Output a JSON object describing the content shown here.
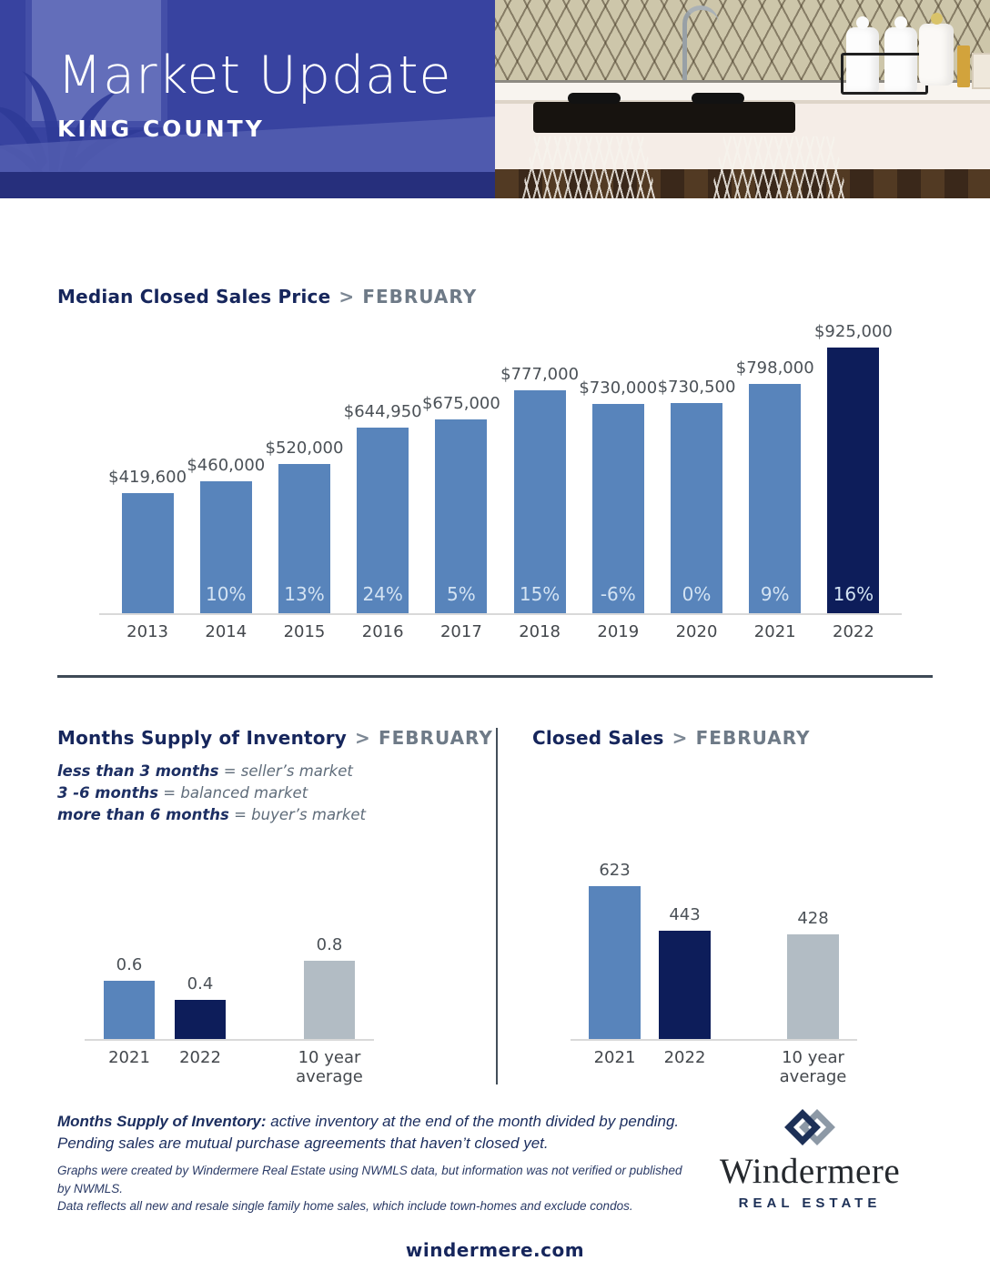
{
  "header": {
    "title": "Market Update",
    "subtitle": "KING COUNTY"
  },
  "ui": {
    "chevron": ">"
  },
  "colors": {
    "steel": "#5884bb",
    "navy": "#0d1d5a",
    "gray": "#b2bcc4",
    "title_navy": "#16265c",
    "period_gray": "#6e7a87",
    "divider": "#3e4a56",
    "pct_text": "#d3e3f3",
    "label_gray": "#4b5157",
    "header_overlay_blue": "#3f4ca6"
  },
  "chart_data": [
    {
      "type": "bar",
      "title": "Median Closed Sales Price",
      "period": "FEBRUARY",
      "categories": [
        "2013",
        "2014",
        "2015",
        "2016",
        "2017",
        "2018",
        "2019",
        "2020",
        "2021",
        "2022"
      ],
      "values": [
        419600,
        460000,
        520000,
        644950,
        675000,
        777000,
        730000,
        730500,
        798000,
        925000
      ],
      "value_labels": [
        "$419,600",
        "$460,000",
        "$520,000",
        "$644,950",
        "$675,000",
        "$777,000",
        "$730,000",
        "$730,500",
        "$798,000",
        "$925,000"
      ],
      "pct_labels": [
        "",
        "10%",
        "13%",
        "24%",
        "5%",
        "15%",
        "-6%",
        "0%",
        "9%",
        "16%"
      ],
      "bar_colors": [
        "steel",
        "steel",
        "steel",
        "steel",
        "steel",
        "steel",
        "steel",
        "steel",
        "steel",
        "navy"
      ],
      "ylim": [
        0,
        925000
      ],
      "grid": false,
      "legend_position": "none"
    },
    {
      "type": "bar",
      "title": "Months Supply of Inventory",
      "period": "FEBRUARY",
      "categories": [
        "2021",
        "2022",
        "10 year\naverage"
      ],
      "values": [
        0.6,
        0.4,
        0.8
      ],
      "value_labels": [
        "0.6",
        "0.4",
        "0.8"
      ],
      "pct_labels": null,
      "bar_colors": [
        "steel",
        "navy",
        "gray"
      ],
      "gap_before": 2,
      "ylim": [
        0,
        0.8
      ],
      "grid": false
    },
    {
      "type": "bar",
      "title": "Closed Sales",
      "period": "FEBRUARY",
      "categories": [
        "2021",
        "2022",
        "10 year\naverage"
      ],
      "values": [
        623,
        443,
        428
      ],
      "value_labels": [
        "623",
        "443",
        "428"
      ],
      "pct_labels": null,
      "bar_colors": [
        "steel",
        "navy",
        "gray"
      ],
      "gap_before": 2,
      "ylim": [
        0,
        623
      ],
      "grid": false
    }
  ],
  "supply_legend": {
    "separator": "=",
    "rows": [
      {
        "term": "less than 3 months",
        "def": "seller’s market"
      },
      {
        "term": "3 -6 months",
        "def": "balanced market"
      },
      {
        "term": "more than 6 months",
        "def": "buyer’s market"
      }
    ]
  },
  "footer": {
    "msi_label": "Months Supply of Inventory:",
    "msi_line1": "active inventory at the end of the month divided by pending.",
    "msi_line2": "Pending sales are mutual purchase agreements that haven’t closed yet.",
    "disclaimer_line1": "Graphs were created by Windermere Real Estate using NWMLS data, but information was not verified or published by NWMLS.",
    "disclaimer_line2": "Data reflects all new and resale single family home sales, which include town-homes and exclude condos.",
    "logo_name": "Windermere",
    "logo_subtitle": "REAL ESTATE",
    "website": "windermere.com"
  }
}
